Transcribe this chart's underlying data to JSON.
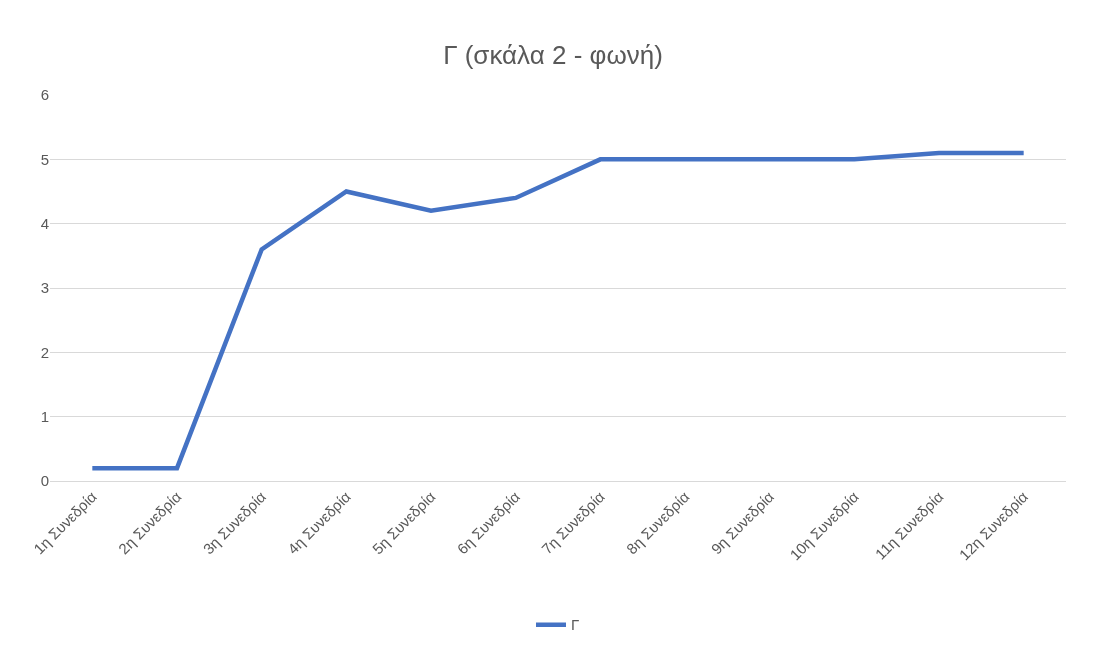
{
  "chart_data": {
    "type": "line",
    "title": "Γ (σκάλα 2 - φωνή)",
    "categories": [
      "1η Συνεδρία",
      "2η Συνεδρία",
      "3η Συνεδρία",
      "4η Συνεδρία",
      "5η Συνεδρία",
      "6η Συνεδρία",
      "7η Συνεδρία",
      "8η Συνεδρία",
      "9η Συνεδρία",
      "10η Συνεδρία",
      "11η Συνεδρία",
      "12η Συνεδρία"
    ],
    "series": [
      {
        "name": "Γ",
        "color": "#4472c4",
        "values": [
          0.2,
          0.2,
          3.6,
          4.5,
          4.2,
          4.4,
          5,
          5,
          5,
          5,
          5.1,
          5.1
        ]
      }
    ],
    "ylim": [
      0,
      6
    ],
    "yticks": [
      0,
      1,
      2,
      3,
      4,
      5,
      6
    ],
    "grid": "y",
    "legend": "bottom",
    "marker": "none",
    "line_style": "solid"
  }
}
